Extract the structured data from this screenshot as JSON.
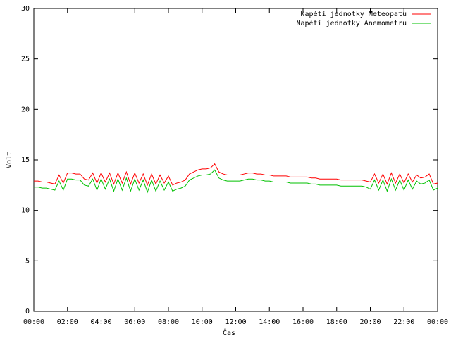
{
  "chart_data": {
    "type": "line",
    "x_label": "Čas",
    "y_label": "Volt",
    "x": [
      0,
      0.25,
      0.5,
      0.75,
      1,
      1.25,
      1.5,
      1.75,
      2,
      2.25,
      2.5,
      2.75,
      3,
      3.25,
      3.5,
      3.75,
      4,
      4.25,
      4.5,
      4.75,
      5,
      5.25,
      5.5,
      5.75,
      6,
      6.25,
      6.5,
      6.75,
      7,
      7.25,
      7.5,
      7.75,
      8,
      8.25,
      8.5,
      8.75,
      9,
      9.25,
      9.5,
      9.75,
      10,
      10.25,
      10.5,
      10.75,
      11,
      11.25,
      11.5,
      11.75,
      12,
      12.25,
      12.5,
      12.75,
      13,
      13.25,
      13.5,
      13.75,
      14,
      14.25,
      14.5,
      14.75,
      15,
      15.25,
      15.5,
      15.75,
      16,
      16.25,
      16.5,
      16.75,
      17,
      17.25,
      17.5,
      17.75,
      18,
      18.25,
      18.5,
      18.75,
      19,
      19.25,
      19.5,
      19.75,
      20,
      20.25,
      20.5,
      20.75,
      21,
      21.25,
      21.5,
      21.75,
      22,
      22.25,
      22.5,
      22.75,
      23,
      23.25,
      23.5,
      23.75,
      24
    ],
    "series": [
      {
        "name": "Napětí jednotky Meteopatu",
        "color": "#ff0000",
        "values": [
          12.9,
          12.9,
          12.8,
          12.8,
          12.7,
          12.6,
          13.5,
          12.7,
          13.7,
          13.7,
          13.6,
          13.6,
          13.1,
          13.0,
          13.7,
          12.7,
          13.7,
          12.8,
          13.7,
          12.6,
          13.7,
          12.7,
          13.8,
          12.6,
          13.7,
          12.7,
          13.6,
          12.5,
          13.6,
          12.6,
          13.5,
          12.7,
          13.4,
          12.5,
          12.7,
          12.8,
          13.0,
          13.6,
          13.8,
          14.0,
          14.1,
          14.1,
          14.2,
          14.6,
          13.8,
          13.6,
          13.5,
          13.5,
          13.5,
          13.5,
          13.6,
          13.7,
          13.7,
          13.6,
          13.6,
          13.5,
          13.5,
          13.4,
          13.4,
          13.4,
          13.4,
          13.3,
          13.3,
          13.3,
          13.3,
          13.3,
          13.2,
          13.2,
          13.1,
          13.1,
          13.1,
          13.1,
          13.1,
          13.0,
          13.0,
          13.0,
          13.0,
          13.0,
          13.0,
          12.9,
          12.8,
          13.6,
          12.7,
          13.6,
          12.6,
          13.7,
          12.7,
          13.6,
          12.7,
          13.6,
          12.8,
          13.5,
          13.2,
          13.3,
          13.6,
          12.6,
          12.7
        ]
      },
      {
        "name": "Napětí jednotky Anemometru",
        "color": "#00c000",
        "values": [
          12.3,
          12.3,
          12.2,
          12.2,
          12.1,
          12.0,
          12.9,
          12.0,
          13.1,
          13.1,
          13.0,
          13.0,
          12.5,
          12.4,
          13.1,
          12.0,
          13.1,
          12.1,
          13.1,
          11.9,
          13.1,
          12.0,
          13.2,
          11.9,
          13.1,
          12.0,
          13.0,
          11.8,
          13.0,
          11.9,
          12.9,
          12.0,
          12.8,
          11.9,
          12.1,
          12.2,
          12.4,
          13.0,
          13.2,
          13.4,
          13.5,
          13.5,
          13.6,
          14.0,
          13.2,
          13.0,
          12.9,
          12.9,
          12.9,
          12.9,
          13.0,
          13.1,
          13.1,
          13.0,
          13.0,
          12.9,
          12.9,
          12.8,
          12.8,
          12.8,
          12.8,
          12.7,
          12.7,
          12.7,
          12.7,
          12.7,
          12.6,
          12.6,
          12.5,
          12.5,
          12.5,
          12.5,
          12.5,
          12.4,
          12.4,
          12.4,
          12.4,
          12.4,
          12.4,
          12.3,
          12.1,
          13.0,
          12.0,
          13.0,
          11.9,
          13.1,
          12.0,
          13.0,
          12.0,
          13.0,
          12.1,
          12.9,
          12.6,
          12.7,
          13.0,
          12.0,
          12.2
        ]
      }
    ],
    "xlim": [
      0,
      24
    ],
    "xticks": [
      {
        "value": 0,
        "label": "00:00"
      },
      {
        "value": 2,
        "label": "02:00"
      },
      {
        "value": 4,
        "label": "04:00"
      },
      {
        "value": 6,
        "label": "06:00"
      },
      {
        "value": 8,
        "label": "08:00"
      },
      {
        "value": 10,
        "label": "10:00"
      },
      {
        "value": 12,
        "label": "12:00"
      },
      {
        "value": 14,
        "label": "14:00"
      },
      {
        "value": 16,
        "label": "16:00"
      },
      {
        "value": 18,
        "label": "18:00"
      },
      {
        "value": 20,
        "label": "20:00"
      },
      {
        "value": 22,
        "label": "22:00"
      },
      {
        "value": 24,
        "label": "00:00"
      }
    ],
    "ylim": [
      0,
      30
    ],
    "yticks": [
      0,
      5,
      10,
      15,
      20,
      25,
      30
    ],
    "legend": "upper right",
    "grid": false
  }
}
